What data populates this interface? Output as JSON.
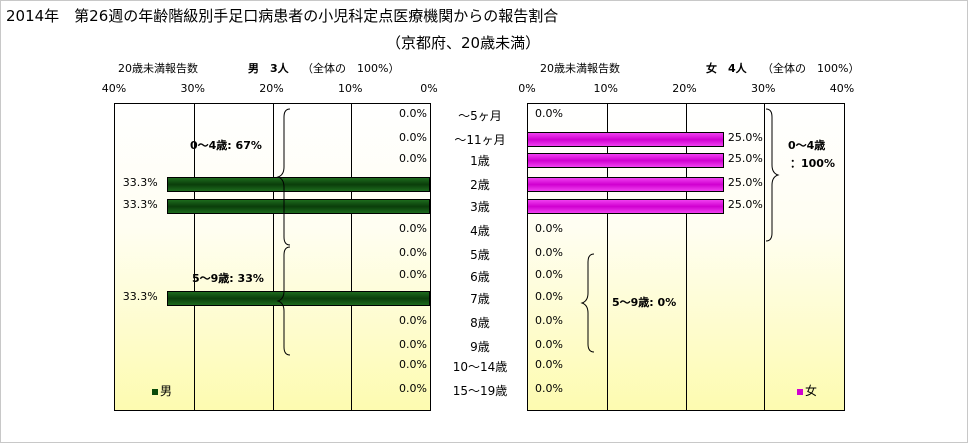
{
  "title_line1": "2014年　第26週の年齢階級別手足口病患者の小児科定点医療機関からの報告割合",
  "title_line2": "（京都府、20歳未満）",
  "chart_data": [
    {
      "type": "bar",
      "orientation": "horizontal",
      "header": "20歳未満報告数",
      "sex_count": "男　3人",
      "total_note": "（全体の　100%）",
      "xlim": [
        0,
        40
      ],
      "x_axis_reversed": true,
      "tick_labels": [
        "40%",
        "30%",
        "20%",
        "10%",
        "0%"
      ],
      "categories": [
        "～5ヶ月",
        "～11ヶ月",
        "1歳",
        "2歳",
        "3歳",
        "4歳",
        "5歳",
        "6歳",
        "7歳",
        "8歳",
        "9歳",
        "10～14歳",
        "15～19歳"
      ],
      "series": [
        {
          "name": "男",
          "values": [
            0,
            0,
            0,
            33.3,
            33.3,
            0,
            0,
            0,
            33.3,
            0,
            0,
            0,
            0
          ],
          "color": "#0a4a0a"
        }
      ],
      "data_labels": [
        "0.0%",
        "0.0%",
        "0.0%",
        "33.3%",
        "33.3%",
        "0.0%",
        "0.0%",
        "0.0%",
        "33.3%",
        "0.0%",
        "0.0%",
        "0.0%",
        "0.0%"
      ],
      "group_labels": [
        "0～4歳: 67%",
        "5～9歳: 33%"
      ],
      "legend_position": "bottom-left",
      "grid": true
    },
    {
      "type": "bar",
      "orientation": "horizontal",
      "header": "20歳未満報告数",
      "sex_count": "女　4人",
      "total_note": "（全体の　100%）",
      "xlim": [
        0,
        40
      ],
      "tick_labels": [
        "0%",
        "10%",
        "20%",
        "30%",
        "40%"
      ],
      "categories": [
        "～5ヶ月",
        "～11ヶ月",
        "1歳",
        "2歳",
        "3歳",
        "4歳",
        "5歳",
        "6歳",
        "7歳",
        "8歳",
        "9歳",
        "10～14歳",
        "15～19歳"
      ],
      "series": [
        {
          "name": "女",
          "values": [
            0,
            25,
            25,
            25,
            25,
            0,
            0,
            0,
            0,
            0,
            0,
            0,
            0
          ],
          "color": "#d000d0"
        }
      ],
      "data_labels": [
        "0.0%",
        "25.0%",
        "25.0%",
        "25.0%",
        "25.0%",
        "0.0%",
        "0.0%",
        "0.0%",
        "0.0%",
        "0.0%",
        "0.0%",
        "0.0%",
        "0.0%"
      ],
      "group_labels": [
        "0～4歳",
        "：100%",
        "5～9歳: 0%"
      ],
      "legend_position": "bottom-right",
      "grid": true
    }
  ]
}
